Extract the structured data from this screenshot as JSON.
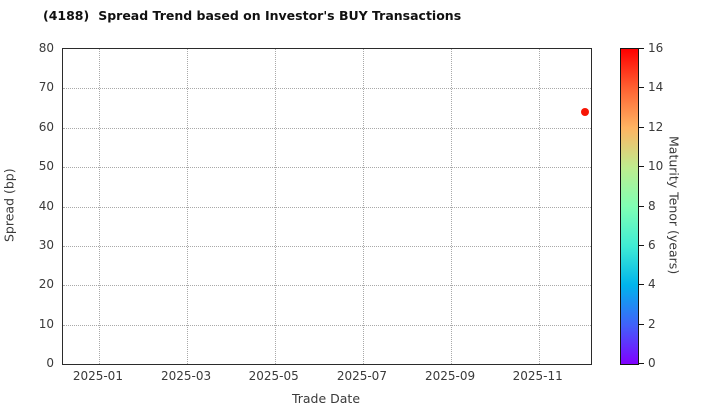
{
  "header": {
    "code": "(4188)",
    "title": "Spread Trend based on Investor's BUY Transactions"
  },
  "chart_data": {
    "type": "scatter",
    "title": "(4188) Spread Trend based on Investor's BUY Transactions",
    "xlabel": "Trade Date",
    "ylabel": "Spread (bp)",
    "ylim": [
      0,
      80
    ],
    "y_ticks": [
      0,
      10,
      20,
      30,
      40,
      50,
      60,
      70,
      80
    ],
    "x_ticks": [
      {
        "label": "2025-01",
        "pos": 0.068
      },
      {
        "label": "2025-03",
        "pos": 0.235
      },
      {
        "label": "2025-05",
        "pos": 0.401
      },
      {
        "label": "2025-07",
        "pos": 0.568
      },
      {
        "label": "2025-09",
        "pos": 0.735
      },
      {
        "label": "2025-11",
        "pos": 0.901
      }
    ],
    "grid": true,
    "grid_style": "dotted",
    "points": [
      {
        "trade_date": "2025-12",
        "x_pos": 0.989,
        "spread_bp": 64,
        "maturity_tenor_years": 15.5,
        "color": "#f71505"
      }
    ],
    "colorbar": {
      "label": "Maturity Tenor (years)",
      "min": 0,
      "max": 16,
      "ticks": [
        0,
        2,
        4,
        6,
        8,
        10,
        12,
        14,
        16
      ],
      "gradient": [
        {
          "v": 0,
          "c": "#8000ff"
        },
        {
          "v": 2,
          "c": "#4062fa"
        },
        {
          "v": 4,
          "c": "#00b4ec"
        },
        {
          "v": 6,
          "c": "#40ecd4"
        },
        {
          "v": 8,
          "c": "#80ffb4"
        },
        {
          "v": 10,
          "c": "#bfec8e"
        },
        {
          "v": 12,
          "c": "#ffb462"
        },
        {
          "v": 14,
          "c": "#ff6232"
        },
        {
          "v": 16,
          "c": "#ff0000"
        }
      ]
    }
  },
  "colors": {
    "background": "#ffffff",
    "grid": "#a9a9a9",
    "spine": "#2b2b2b",
    "text": "#3a3a3a",
    "title": "#111111"
  }
}
